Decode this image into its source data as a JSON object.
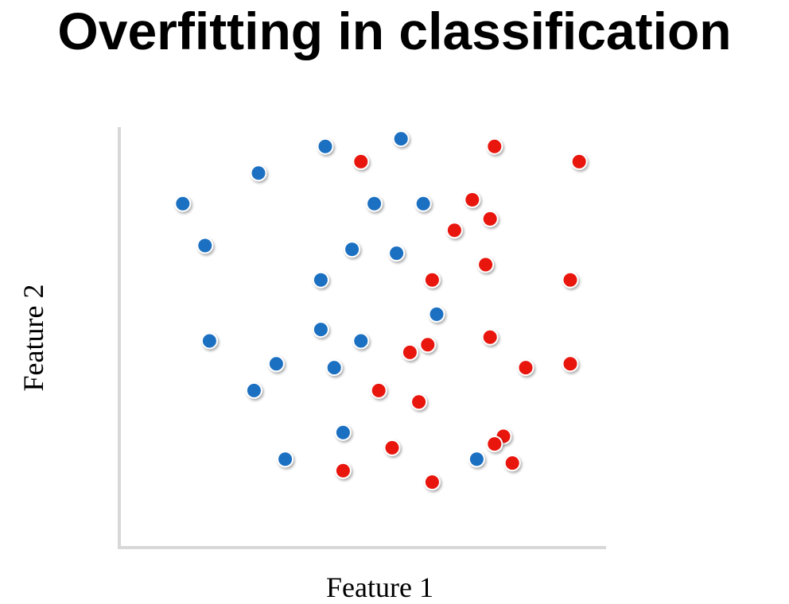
{
  "title": "Overfitting in classification",
  "chart_data": {
    "type": "scatter",
    "title": "",
    "xlabel": "Feature 1",
    "ylabel": "Feature 2",
    "xlim": [
      0,
      100
    ],
    "ylim": [
      0,
      100
    ],
    "grid": false,
    "colors": {
      "blue": "#1f6fc1",
      "red": "#e8140f"
    },
    "series": [
      {
        "color": "blue",
        "points": [
          [
            40,
            96
          ],
          [
            57,
            98
          ],
          [
            25,
            89
          ],
          [
            8,
            81
          ],
          [
            51,
            81
          ],
          [
            62,
            81
          ],
          [
            13,
            70
          ],
          [
            46,
            69
          ],
          [
            56,
            68
          ],
          [
            39,
            61
          ],
          [
            65,
            52
          ],
          [
            39,
            48
          ],
          [
            48,
            45
          ],
          [
            14,
            45
          ],
          [
            29,
            39
          ],
          [
            42,
            38
          ],
          [
            24,
            32
          ],
          [
            44,
            21
          ],
          [
            31,
            14
          ],
          [
            74,
            14
          ]
        ]
      },
      {
        "color": "red",
        "points": [
          [
            78,
            96
          ],
          [
            48,
            92
          ],
          [
            97,
            92
          ],
          [
            73,
            82
          ],
          [
            77,
            77
          ],
          [
            69,
            74
          ],
          [
            76,
            65
          ],
          [
            64,
            61
          ],
          [
            95,
            61
          ],
          [
            63,
            44
          ],
          [
            77,
            46
          ],
          [
            59,
            42
          ],
          [
            85,
            38
          ],
          [
            95,
            39
          ],
          [
            52,
            32
          ],
          [
            61,
            29
          ],
          [
            80,
            20
          ],
          [
            78,
            18
          ],
          [
            55,
            17
          ],
          [
            82,
            13
          ],
          [
            44,
            11
          ],
          [
            64,
            8
          ]
        ]
      }
    ]
  }
}
